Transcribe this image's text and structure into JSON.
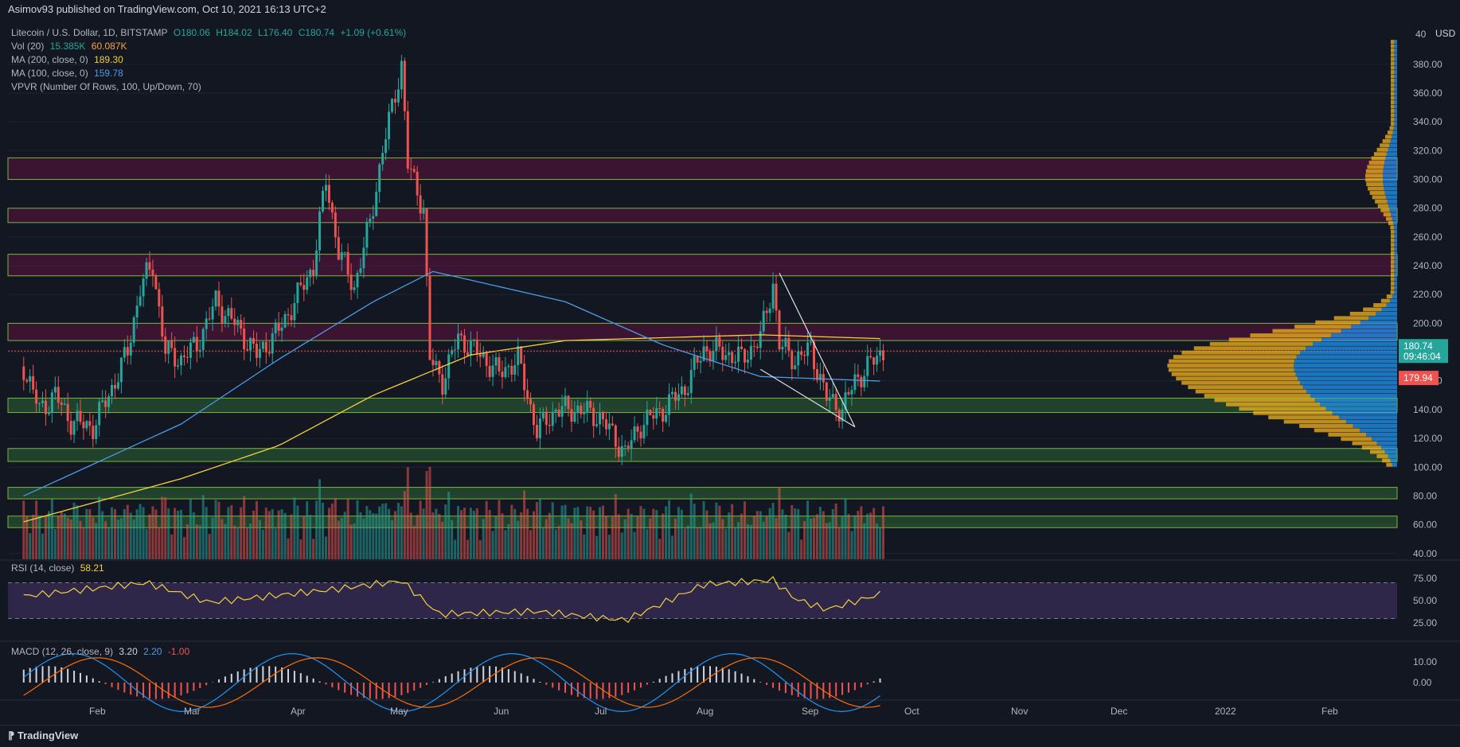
{
  "banner": "Asimov93 published on TradingView.com, Oct 10, 2021 16:13 UTC+2",
  "legend": {
    "symbol": "Litecoin / U.S. Dollar, 1D, BITSTAMP",
    "o": "O180.06",
    "h": "H184.02",
    "l": "L176.40",
    "c": "C180.74",
    "chg": "+1.09 (+0.61%)",
    "vol_label": "Vol (20)",
    "vol_v1": "15.385K",
    "vol_v2": "60.087K",
    "ma200_label": "MA (200, close, 0)",
    "ma200_val": "189.30",
    "ma100_label": "MA (100, close, 0)",
    "ma100_val": "159.78",
    "vpvr_label": "VPVR (Number Of Rows, 100, Up/Down, 70)"
  },
  "rsi": {
    "label": "RSI (14, close)",
    "value": "58.21"
  },
  "macd": {
    "label": "MACD (12, 26, close, 9)",
    "v1": "3.20",
    "v2": "2.20",
    "v3": "-1.00"
  },
  "footer": {
    "logo": "TradingView"
  },
  "colors": {
    "up": "#26a69a",
    "down": "#ef5350",
    "ma200": "#f4d03f",
    "ma100": "#4c9be8",
    "rsi": "#f4d03f",
    "bg": "#131722"
  },
  "chart_data": {
    "type": "candlestick",
    "currency": "USD",
    "price_axis": {
      "ticks": [
        40,
        60,
        80,
        100,
        120,
        140,
        160,
        180,
        200,
        220,
        240,
        260,
        280,
        300,
        320,
        340,
        360,
        380,
        "40"
      ],
      "range": [
        36,
        412
      ]
    },
    "time_axis": {
      "labels": [
        "Feb",
        "Mar",
        "Apr",
        "May",
        "Jun",
        "Jul",
        "Aug",
        "Sep",
        "Oct",
        "Nov",
        "Dec",
        "2022",
        "Feb"
      ]
    },
    "last_price": "180.74",
    "countdown": "09:46:04",
    "ma_price": "179.94",
    "close_series": [
      {
        "date": "Jan 10",
        "value": 170
      },
      {
        "date": "Jan 15",
        "value": 140
      },
      {
        "date": "Jan 20",
        "value": 150
      },
      {
        "date": "Jan 25",
        "value": 132
      },
      {
        "date": "Feb 1",
        "value": 128
      },
      {
        "date": "Feb 6",
        "value": 150
      },
      {
        "date": "Feb 12",
        "value": 180
      },
      {
        "date": "Feb 16",
        "value": 225
      },
      {
        "date": "Feb 20",
        "value": 240
      },
      {
        "date": "Feb 24",
        "value": 180
      },
      {
        "date": "Mar 1",
        "value": 175
      },
      {
        "date": "Mar 6",
        "value": 185
      },
      {
        "date": "Mar 12",
        "value": 215
      },
      {
        "date": "Mar 18",
        "value": 200
      },
      {
        "date": "Mar 25",
        "value": 178
      },
      {
        "date": "Apr 1",
        "value": 195
      },
      {
        "date": "Apr 6",
        "value": 215
      },
      {
        "date": "Apr 12",
        "value": 240
      },
      {
        "date": "Apr 16",
        "value": 300
      },
      {
        "date": "Apr 20",
        "value": 250
      },
      {
        "date": "Apr 25",
        "value": 225
      },
      {
        "date": "Apr 30",
        "value": 270
      },
      {
        "date": "May 4",
        "value": 320
      },
      {
        "date": "May 10",
        "value": 380
      },
      {
        "date": "May 12",
        "value": 310
      },
      {
        "date": "May 17",
        "value": 280
      },
      {
        "date": "May 19",
        "value": 175
      },
      {
        "date": "May 23",
        "value": 160
      },
      {
        "date": "May 28",
        "value": 190
      },
      {
        "date": "Jun 3",
        "value": 180
      },
      {
        "date": "Jun 10",
        "value": 165
      },
      {
        "date": "Jun 16",
        "value": 175
      },
      {
        "date": "Jun 22",
        "value": 125
      },
      {
        "date": "Jun 28",
        "value": 140
      },
      {
        "date": "Jul 5",
        "value": 140
      },
      {
        "date": "Jul 12",
        "value": 135
      },
      {
        "date": "Jul 20",
        "value": 110
      },
      {
        "date": "Jul 25",
        "value": 130
      },
      {
        "date": "Aug 1",
        "value": 140
      },
      {
        "date": "Aug 8",
        "value": 155
      },
      {
        "date": "Aug 14",
        "value": 182
      },
      {
        "date": "Aug 20",
        "value": 180
      },
      {
        "date": "Aug 26",
        "value": 175
      },
      {
        "date": "Sep 1",
        "value": 190
      },
      {
        "date": "Sep 5",
        "value": 228
      },
      {
        "date": "Sep 7",
        "value": 185
      },
      {
        "date": "Sep 12",
        "value": 175
      },
      {
        "date": "Sep 17",
        "value": 182
      },
      {
        "date": "Sep 22",
        "value": 148
      },
      {
        "date": "Sep 27",
        "value": 140
      },
      {
        "date": "Oct 1",
        "value": 160
      },
      {
        "date": "Oct 6",
        "value": 172
      },
      {
        "date": "Oct 10",
        "value": 180.74
      }
    ],
    "ma200_series": [
      {
        "date": "Jan 10",
        "value": 62
      },
      {
        "date": "Mar 1",
        "value": 92
      },
      {
        "date": "Apr 1",
        "value": 115
      },
      {
        "date": "May 1",
        "value": 150
      },
      {
        "date": "Jun 1",
        "value": 178
      },
      {
        "date": "Jul 1",
        "value": 188
      },
      {
        "date": "Aug 1",
        "value": 190
      },
      {
        "date": "Sep 1",
        "value": 192
      },
      {
        "date": "Oct 10",
        "value": 189.3
      }
    ],
    "ma100_series": [
      {
        "date": "Jan 10",
        "value": 80
      },
      {
        "date": "Mar 1",
        "value": 130
      },
      {
        "date": "Apr 1",
        "value": 175
      },
      {
        "date": "May 1",
        "value": 215
      },
      {
        "date": "May 20",
        "value": 236
      },
      {
        "date": "Jul 1",
        "value": 215
      },
      {
        "date": "Aug 1",
        "value": 185
      },
      {
        "date": "Sep 1",
        "value": 163
      },
      {
        "date": "Oct 10",
        "value": 159.78
      }
    ],
    "zones_red": [
      [
        300,
        315
      ],
      [
        270,
        280
      ],
      [
        233,
        248
      ],
      [
        188,
        200
      ]
    ],
    "zones_green": [
      [
        138,
        148
      ],
      [
        104,
        113
      ],
      [
        78,
        86
      ],
      [
        58,
        66
      ]
    ],
    "trendlines": [
      {
        "x1": "Sep 7",
        "y1": 235,
        "x2": "Oct 1",
        "y2": 128
      },
      {
        "x1": "Sep 1",
        "y1": 168,
        "x2": "Oct 1",
        "y2": 128
      }
    ],
    "rsi_axis": {
      "ticks": [
        "75.00",
        "50.00",
        "25.00"
      ],
      "levels": [
        30,
        70
      ]
    },
    "rsi_series": [
      {
        "date": "Jan 10",
        "value": 55
      },
      {
        "date": "Feb 18",
        "value": 70
      },
      {
        "date": "Mar 10",
        "value": 48
      },
      {
        "date": "Apr 17",
        "value": 62
      },
      {
        "date": "May 10",
        "value": 72
      },
      {
        "date": "May 22",
        "value": 35
      },
      {
        "date": "Jun 22",
        "value": 38
      },
      {
        "date": "Jul 20",
        "value": 28
      },
      {
        "date": "Aug 14",
        "value": 68
      },
      {
        "date": "Sep 5",
        "value": 73
      },
      {
        "date": "Sep 12",
        "value": 52
      },
      {
        "date": "Sep 22",
        "value": 40
      },
      {
        "date": "Oct 10",
        "value": 58.21
      }
    ],
    "macd_axis": {
      "ticks": [
        "10.00",
        "0.00"
      ]
    }
  }
}
